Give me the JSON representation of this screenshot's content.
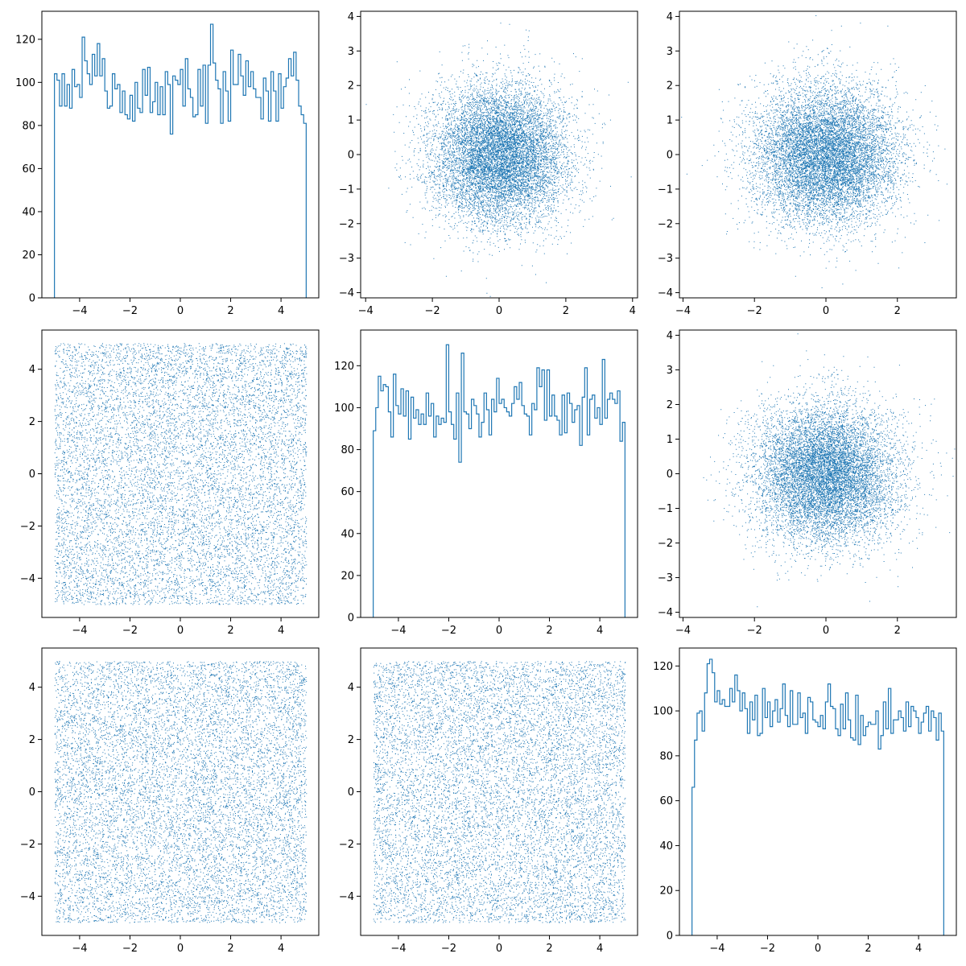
{
  "colors": {
    "series": "#1f77b4",
    "axes": "#000000",
    "background": "#ffffff"
  },
  "chart_data": [
    {
      "panel": "row1-col1",
      "type": "histogram",
      "xlim": [
        -5.5,
        5.5
      ],
      "ylim": [
        0,
        133
      ],
      "xticks": [
        -4,
        -2,
        0,
        2,
        4
      ],
      "yticks": [
        0,
        20,
        40,
        60,
        80,
        100,
        120
      ],
      "xticklabels": [
        "−4",
        "−2",
        "0",
        "2",
        "4"
      ],
      "yticklabels": [
        "0",
        "20",
        "40",
        "60",
        "80",
        "100",
        "120"
      ],
      "bin_range": [
        -5,
        5
      ],
      "bins": 100,
      "counts": [
        104,
        101,
        89,
        104,
        89,
        99,
        88,
        106,
        98,
        99,
        93,
        121,
        110,
        104,
        99,
        113,
        103,
        118,
        103,
        111,
        96,
        88,
        89,
        104,
        97,
        99,
        86,
        96,
        85,
        83,
        94,
        82,
        100,
        88,
        86,
        106,
        94,
        107,
        86,
        91,
        100,
        85,
        98,
        85,
        105,
        99,
        76,
        103,
        101,
        99,
        106,
        89,
        111,
        97,
        93,
        84,
        85,
        106,
        89,
        108,
        81,
        108,
        127,
        109,
        101,
        97,
        81,
        105,
        96,
        82,
        115,
        99,
        99,
        113,
        103,
        94,
        110,
        98,
        105,
        97,
        93,
        93,
        83,
        102,
        96,
        82,
        105,
        96,
        82,
        104,
        88,
        98,
        102,
        111,
        103,
        114,
        101,
        89,
        85,
        81
      ]
    },
    {
      "panel": "row1-col2",
      "type": "scatter",
      "distribution": "normal(0,1) vs normal(0,1)",
      "n_points": 10000,
      "xlim": [
        -4.15,
        4.15
      ],
      "ylim": [
        -4.15,
        4.15
      ],
      "xticks": [
        -4,
        -2,
        0,
        2,
        4
      ],
      "yticks": [
        -4,
        -3,
        -2,
        -1,
        0,
        1,
        2,
        3,
        4
      ],
      "xticklabels": [
        "−4",
        "−2",
        "0",
        "2",
        "4"
      ],
      "yticklabels": [
        "−4",
        "−3",
        "−2",
        "−1",
        "0",
        "1",
        "2",
        "3",
        "4"
      ]
    },
    {
      "panel": "row1-col3",
      "type": "scatter",
      "distribution": "normal(0,1) vs normal(0,1)",
      "n_points": 10000,
      "xlim": [
        -4.1,
        3.65
      ],
      "ylim": [
        -4.15,
        4.15
      ],
      "xticks": [
        -4,
        -2,
        0,
        2
      ],
      "yticks": [
        -4,
        -3,
        -2,
        -1,
        0,
        1,
        2,
        3,
        4
      ],
      "xticklabels": [
        "−4",
        "−2",
        "0",
        "2"
      ],
      "yticklabels": [
        "−4",
        "−3",
        "−2",
        "−1",
        "0",
        "1",
        "2",
        "3",
        "4"
      ]
    },
    {
      "panel": "row2-col1",
      "type": "scatter",
      "distribution": "uniform(-5,5) vs uniform(-5,5)",
      "n_points": 10000,
      "xlim": [
        -5.5,
        5.5
      ],
      "ylim": [
        -5.5,
        5.5
      ],
      "xticks": [
        -4,
        -2,
        0,
        2,
        4
      ],
      "yticks": [
        -4,
        -2,
        0,
        2,
        4
      ],
      "xticklabels": [
        "−4",
        "−2",
        "0",
        "2",
        "4"
      ],
      "yticklabels": [
        "−4",
        "−2",
        "0",
        "2",
        "4"
      ]
    },
    {
      "panel": "row2-col2",
      "type": "histogram",
      "xlim": [
        -5.5,
        5.5
      ],
      "ylim": [
        0,
        137
      ],
      "xticks": [
        -4,
        -2,
        0,
        2,
        4
      ],
      "yticks": [
        0,
        20,
        40,
        60,
        80,
        100,
        120
      ],
      "xticklabels": [
        "−4",
        "−2",
        "0",
        "2",
        "4"
      ],
      "yticklabels": [
        "0",
        "20",
        "40",
        "60",
        "80",
        "100",
        "120"
      ],
      "bin_range": [
        -5,
        5
      ],
      "bins": 100,
      "counts": [
        89,
        100,
        115,
        108,
        111,
        110,
        98,
        86,
        116,
        101,
        97,
        109,
        96,
        108,
        85,
        105,
        95,
        99,
        92,
        97,
        92,
        107,
        96,
        102,
        86,
        96,
        92,
        95,
        93,
        130,
        98,
        92,
        85,
        107,
        74,
        126,
        98,
        97,
        90,
        104,
        101,
        97,
        86,
        93,
        107,
        99,
        87,
        104,
        98,
        114,
        102,
        104,
        100,
        98,
        96,
        102,
        110,
        104,
        112,
        101,
        97,
        96,
        87,
        102,
        99,
        119,
        110,
        118,
        94,
        118,
        96,
        106,
        96,
        94,
        87,
        106,
        88,
        107,
        102,
        93,
        99,
        101,
        82,
        105,
        119,
        87,
        104,
        106,
        95,
        100,
        92,
        123,
        95,
        104,
        107,
        104,
        102,
        108,
        84,
        93
      ]
    },
    {
      "panel": "row2-col3",
      "type": "scatter",
      "distribution": "normal(0,1) vs normal(0,1)",
      "n_points": 10000,
      "xlim": [
        -4.1,
        3.65
      ],
      "ylim": [
        -4.15,
        4.15
      ],
      "xticks": [
        -4,
        -2,
        0,
        2
      ],
      "yticks": [
        -4,
        -3,
        -2,
        -1,
        0,
        1,
        2,
        3,
        4
      ],
      "xticklabels": [
        "−4",
        "−2",
        "0",
        "2"
      ],
      "yticklabels": [
        "−4",
        "−3",
        "−2",
        "−1",
        "0",
        "1",
        "2",
        "3",
        "4"
      ]
    },
    {
      "panel": "row3-col1",
      "type": "scatter",
      "distribution": "uniform(-5,5) vs uniform(-5,5)",
      "n_points": 10000,
      "xlim": [
        -5.5,
        5.5
      ],
      "ylim": [
        -5.5,
        5.5
      ],
      "xticks": [
        -4,
        -2,
        0,
        2,
        4
      ],
      "yticks": [
        -4,
        -2,
        0,
        2,
        4
      ],
      "xticklabels": [
        "−4",
        "−2",
        "0",
        "2",
        "4"
      ],
      "yticklabels": [
        "−4",
        "−2",
        "0",
        "2",
        "4"
      ]
    },
    {
      "panel": "row3-col2",
      "type": "scatter",
      "distribution": "uniform(-5,5) vs uniform(-5,5)",
      "n_points": 10000,
      "xlim": [
        -5.5,
        5.5
      ],
      "ylim": [
        -5.5,
        5.5
      ],
      "xticks": [
        -4,
        -2,
        0,
        2,
        4
      ],
      "yticks": [
        -4,
        -2,
        0,
        2,
        4
      ],
      "xticklabels": [
        "−4",
        "−2",
        "0",
        "2",
        "4"
      ],
      "yticklabels": [
        "−4",
        "−2",
        "0",
        "2",
        "4"
      ]
    },
    {
      "panel": "row3-col3",
      "type": "histogram",
      "xlim": [
        -5.5,
        5.5
      ],
      "ylim": [
        0,
        128
      ],
      "xticks": [
        -4,
        -2,
        0,
        2,
        4
      ],
      "yticks": [
        0,
        20,
        40,
        60,
        80,
        100,
        120
      ],
      "xticklabels": [
        "−4",
        "−2",
        "0",
        "2",
        "4"
      ],
      "yticklabels": [
        "0",
        "20",
        "40",
        "60",
        "80",
        "100",
        "120"
      ],
      "bin_range": [
        -5,
        5
      ],
      "bins": 100,
      "counts": [
        66,
        87,
        99,
        100,
        91,
        108,
        121,
        123,
        117,
        104,
        109,
        103,
        105,
        102,
        102,
        110,
        104,
        116,
        109,
        100,
        108,
        101,
        90,
        104,
        96,
        107,
        89,
        90,
        110,
        97,
        104,
        93,
        100,
        105,
        95,
        101,
        112,
        98,
        93,
        109,
        94,
        94,
        108,
        97,
        99,
        90,
        106,
        104,
        96,
        95,
        93,
        98,
        92,
        104,
        112,
        102,
        101,
        92,
        89,
        103,
        92,
        108,
        96,
        88,
        87,
        107,
        85,
        98,
        89,
        93,
        95,
        94,
        94,
        100,
        83,
        89,
        104,
        92,
        110,
        90,
        96,
        96,
        100,
        97,
        91,
        104,
        93,
        102,
        100,
        97,
        90,
        95,
        99,
        102,
        91,
        100,
        97,
        87,
        99,
        91
      ]
    }
  ]
}
